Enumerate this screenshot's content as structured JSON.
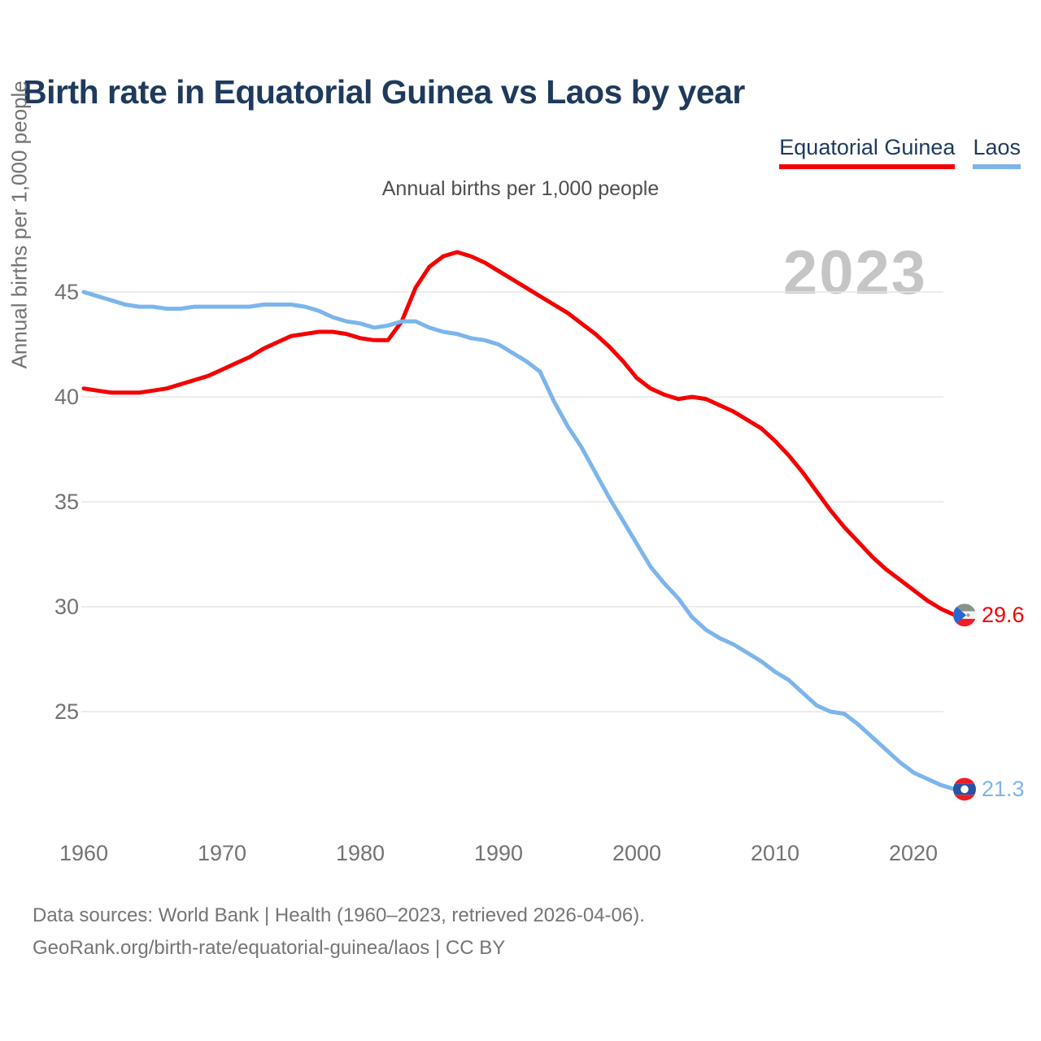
{
  "header": {
    "title": "Birth rate in Equatorial Guinea vs Laos by year",
    "subtitle": "Annual births per 1,000 people",
    "watermark": "2023"
  },
  "legend": [
    {
      "label": "Equatorial Guinea",
      "color": "#f40000"
    },
    {
      "label": "Laos",
      "color": "#7cb5ec"
    }
  ],
  "chart_data": {
    "type": "line",
    "title": "Birth rate in Equatorial Guinea vs Laos by year",
    "ylabel": "Annual births per 1,000 people",
    "xlabel": "",
    "x_start": 1960,
    "x_end": 2023,
    "ylim": [
      20.5,
      47.5
    ],
    "grid": "horizontal",
    "legend_position": "top-right",
    "yticks": [
      25,
      30,
      35,
      40,
      45
    ],
    "xticks": [
      1960,
      1970,
      1980,
      1990,
      2000,
      2010,
      2020
    ],
    "series": [
      {
        "name": "Equatorial Guinea",
        "color": "#f40000",
        "end_label": "29.6",
        "end_value": 29.6,
        "values": [
          40.4,
          40.3,
          40.2,
          40.2,
          40.2,
          40.3,
          40.4,
          40.6,
          40.8,
          41.0,
          41.3,
          41.6,
          41.9,
          42.3,
          42.6,
          42.9,
          43.0,
          43.1,
          43.1,
          43.0,
          42.8,
          42.7,
          42.7,
          43.6,
          45.2,
          46.2,
          46.7,
          46.9,
          46.7,
          46.4,
          46.0,
          45.6,
          45.2,
          44.8,
          44.4,
          44.0,
          43.5,
          43.0,
          42.4,
          41.7,
          40.9,
          40.4,
          40.1,
          39.9,
          40.0,
          39.9,
          39.6,
          39.3,
          38.9,
          38.5,
          37.9,
          37.2,
          36.4,
          35.5,
          34.6,
          33.8,
          33.1,
          32.4,
          31.8,
          31.3,
          30.8,
          30.3,
          29.9,
          29.6
        ]
      },
      {
        "name": "Laos",
        "color": "#7cb5ec",
        "end_label": "21.3",
        "end_value": 21.3,
        "values": [
          45.0,
          44.8,
          44.6,
          44.4,
          44.3,
          44.3,
          44.2,
          44.2,
          44.3,
          44.3,
          44.3,
          44.3,
          44.3,
          44.4,
          44.4,
          44.4,
          44.3,
          44.1,
          43.8,
          43.6,
          43.5,
          43.3,
          43.4,
          43.6,
          43.6,
          43.3,
          43.1,
          43.0,
          42.8,
          42.7,
          42.5,
          42.1,
          41.7,
          41.2,
          39.8,
          38.6,
          37.6,
          36.4,
          35.2,
          34.1,
          33.0,
          31.9,
          31.1,
          30.4,
          29.5,
          28.9,
          28.5,
          28.2,
          27.8,
          27.4,
          26.9,
          26.5,
          25.9,
          25.3,
          25.0,
          24.9,
          24.4,
          23.8,
          23.2,
          22.6,
          22.1,
          21.8,
          21.5,
          21.3
        ]
      }
    ]
  },
  "footer": {
    "line1": "Data sources: World Bank | Health (1960–2023, retrieved 2026-04-06).",
    "line2": "GeoRank.org/birth-rate/equatorial-guinea/laos | CC BY"
  }
}
